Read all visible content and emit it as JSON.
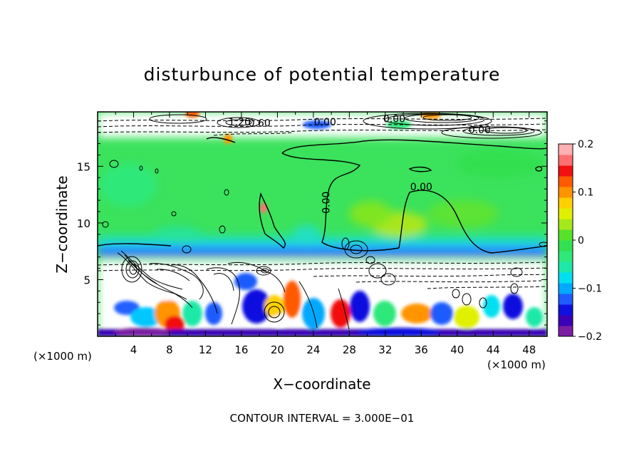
{
  "chart_data": {
    "type": "heatmap",
    "title": "disturbunce of potential temperature",
    "xlabel": "X−coordinate",
    "ylabel": "Z−coordinate",
    "x_unit_label": "(×1000 m)",
    "z_unit_label": "(×1000 m)",
    "footer": "CONTOUR INTERVAL = 3.000E−01",
    "xlim": [
      0,
      50
    ],
    "ylim": [
      0,
      19.8
    ],
    "x_ticks": [
      "4",
      "8",
      "12",
      "16",
      "20",
      "24",
      "28",
      "32",
      "36",
      "40",
      "44",
      "48"
    ],
    "y_ticks": [
      "5",
      "10",
      "15"
    ],
    "colorbar": {
      "range": [
        -0.2,
        0.2
      ],
      "tick_labels": [
        "0.2",
        "0.1",
        "0",
        "−0.1",
        "−0.2"
      ],
      "colors": [
        "#7b1fa2",
        "#3b00b5",
        "#1010e0",
        "#1f5cff",
        "#00a8ff",
        "#00e0f0",
        "#1ee8a8",
        "#2ee87a",
        "#32e050",
        "#56e22a",
        "#a6e81c",
        "#e0f000",
        "#ffd000",
        "#ff9400",
        "#ff5a00",
        "#f21010",
        "#ff6f6f",
        "#ffb0b0"
      ]
    },
    "contour_labels": [
      {
        "text": "0.00",
        "x": 25.3,
        "z": 18.6
      },
      {
        "text": "1.20",
        "x": 15.8,
        "z": 18.6
      },
      {
        "text": "0.60",
        "x": 18.0,
        "z": 18.5
      },
      {
        "text": "0.00",
        "x": 33.0,
        "z": 18.9
      },
      {
        "text": "0.00",
        "x": 42.5,
        "z": 17.9
      },
      {
        "text": "0.00",
        "x": 25.8,
        "z": 11.8
      },
      {
        "text": "0.00",
        "x": 36.0,
        "z": 12.9
      }
    ]
  }
}
